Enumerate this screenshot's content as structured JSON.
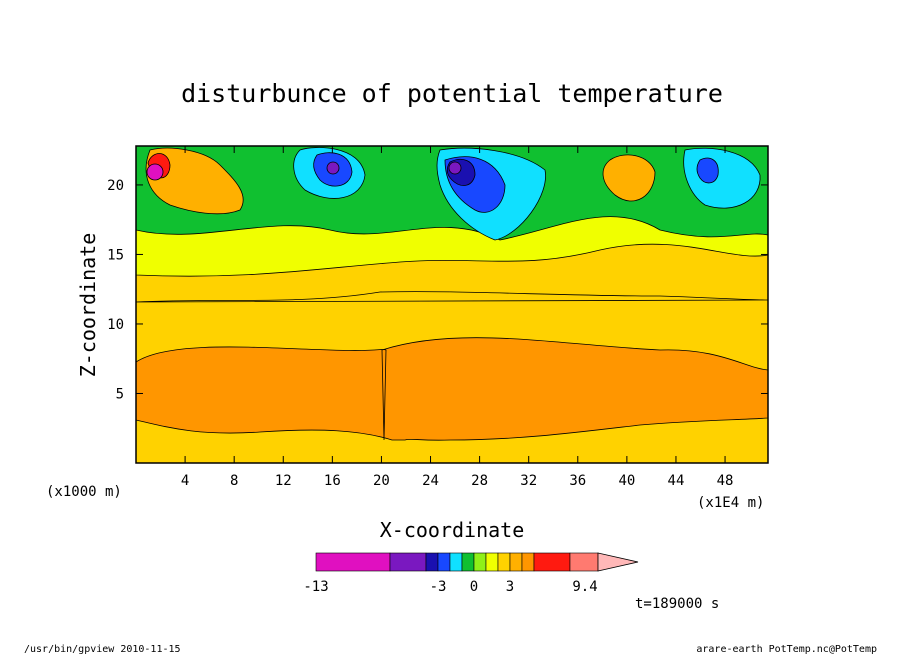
{
  "chart_data": {
    "type": "heatmap",
    "title": "disturbunce of potential temperature",
    "xlabel": "X-coordinate",
    "ylabel": "Z-coordinate",
    "x_unit_label": "(x1E4 m)",
    "z_unit_label": "(x1000 m)",
    "xlim": [
      0,
      51.5
    ],
    "ylim": [
      0,
      22.8
    ],
    "x_ticks": [
      "4",
      "8",
      "12",
      "16",
      "20",
      "24",
      "28",
      "32",
      "36",
      "40",
      "44",
      "48"
    ],
    "y_ticks": [
      "5",
      "10",
      "15",
      "20"
    ],
    "colorbar": {
      "labels": [
        "-13",
        "-3",
        "0",
        "3",
        "9.4"
      ],
      "segments": [
        {
          "color": "#e010c0"
        },
        {
          "color": "#7a18c0"
        },
        {
          "color": "#1a10b0"
        },
        {
          "color": "#1848ff"
        },
        {
          "color": "#10e0ff"
        },
        {
          "color": "#10c030"
        },
        {
          "color": "#90f018"
        },
        {
          "color": "#f0ff00"
        },
        {
          "color": "#ffd200"
        },
        {
          "color": "#ffb000"
        },
        {
          "color": "#ff9600"
        },
        {
          "color": "#ff1a10"
        },
        {
          "color": "#ff7a70"
        }
      ],
      "extend_color": "#ffb8b8"
    },
    "annotation_time": "t=189000 s"
  },
  "footer": {
    "left": "/usr/bin/gpview  2010-11-15",
    "right": "arare-earth_PotTemp.nc@PotTemp"
  },
  "colors": {
    "yellow": "#f0ff00",
    "gold": "#ffd200",
    "orange": "#ff9600",
    "lightorange": "#ffb000",
    "green": "#10c030",
    "cyan": "#10e0ff",
    "blue": "#1848ff",
    "navy": "#1a10b0",
    "purple": "#7a18c0",
    "magenta": "#e010c0",
    "red": "#ff1a10"
  }
}
